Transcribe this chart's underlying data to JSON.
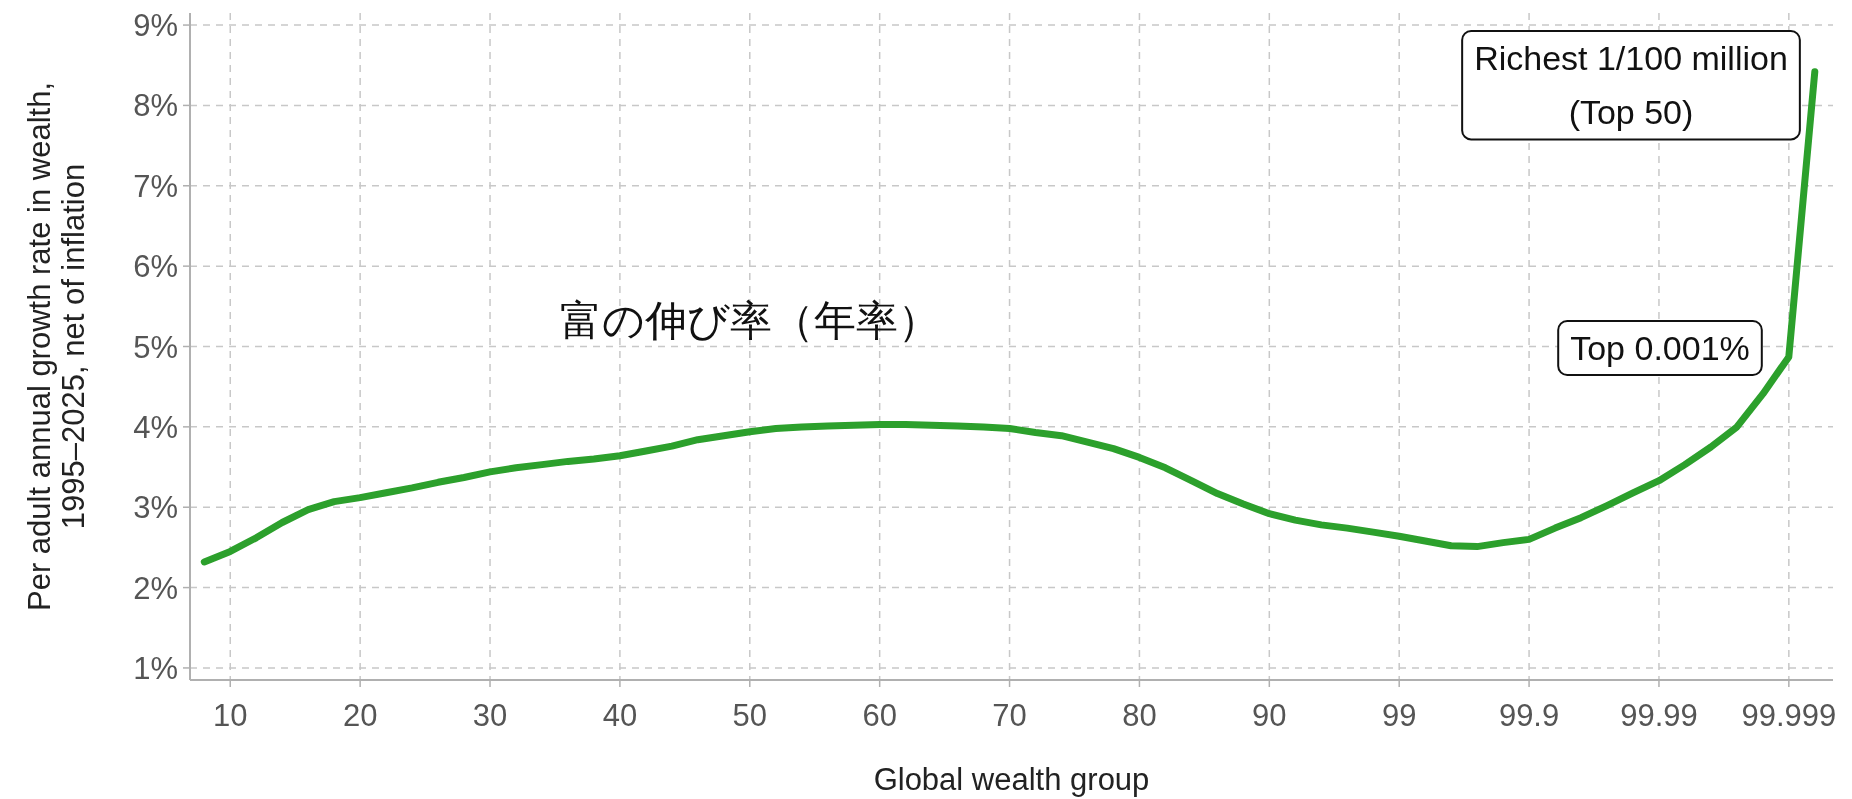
{
  "chart_data": {
    "type": "line",
    "xlabel": "Global wealth group",
    "ylabel": "Per adult annual growth rate in wealth,\n1995–2025, net of inflation",
    "annotations": [
      "Richest 1/100 million\n(Top 50)",
      "富の伸び率（年率）",
      "Top 0.001%"
    ],
    "categories": [
      null,
      "10",
      null,
      null,
      null,
      null,
      "20",
      null,
      null,
      null,
      null,
      "30",
      null,
      null,
      null,
      null,
      "40",
      null,
      null,
      null,
      null,
      "50",
      null,
      null,
      null,
      null,
      "60",
      null,
      null,
      null,
      null,
      "70",
      null,
      null,
      null,
      null,
      "80",
      null,
      null,
      null,
      null,
      "90",
      null,
      null,
      null,
      null,
      "99",
      null,
      null,
      null,
      null,
      "99.9",
      null,
      null,
      null,
      null,
      "99.99",
      null,
      null,
      null,
      null,
      "99.999",
      null
    ],
    "series": [
      {
        "color": "#2ca02c",
        "values": [
          2.32,
          2.45,
          2.62,
          2.81,
          2.97,
          3.07,
          3.12,
          3.18,
          3.24,
          3.31,
          3.37,
          3.44,
          3.49,
          3.53,
          3.57,
          3.6,
          3.64,
          3.7,
          3.76,
          3.84,
          3.89,
          3.94,
          3.98,
          4.0,
          4.01,
          4.02,
          4.03,
          4.03,
          4.02,
          4.01,
          4.0,
          3.98,
          3.93,
          3.89,
          3.81,
          3.73,
          3.62,
          3.49,
          3.33,
          3.17,
          3.04,
          2.92,
          2.84,
          2.78,
          2.74,
          2.69,
          2.64,
          2.58,
          2.52,
          2.51,
          2.56,
          2.6,
          2.74,
          2.87,
          3.02,
          3.18,
          3.33,
          3.53,
          3.75,
          4.0,
          4.41,
          4.87,
          8.42
        ]
      }
    ],
    "ylim": [
      0.85,
      9.15
    ],
    "yticks": [
      {
        "value": 1,
        "label": "1%"
      },
      {
        "value": 2,
        "label": "2%"
      },
      {
        "value": 3,
        "label": "3%"
      },
      {
        "value": 4,
        "label": "4%"
      },
      {
        "value": 5,
        "label": "5%"
      },
      {
        "value": 6,
        "label": "6%"
      },
      {
        "value": 7,
        "label": "7%"
      },
      {
        "value": 8,
        "label": "8%"
      },
      {
        "value": 9,
        "label": "9%"
      }
    ],
    "grid": true
  }
}
